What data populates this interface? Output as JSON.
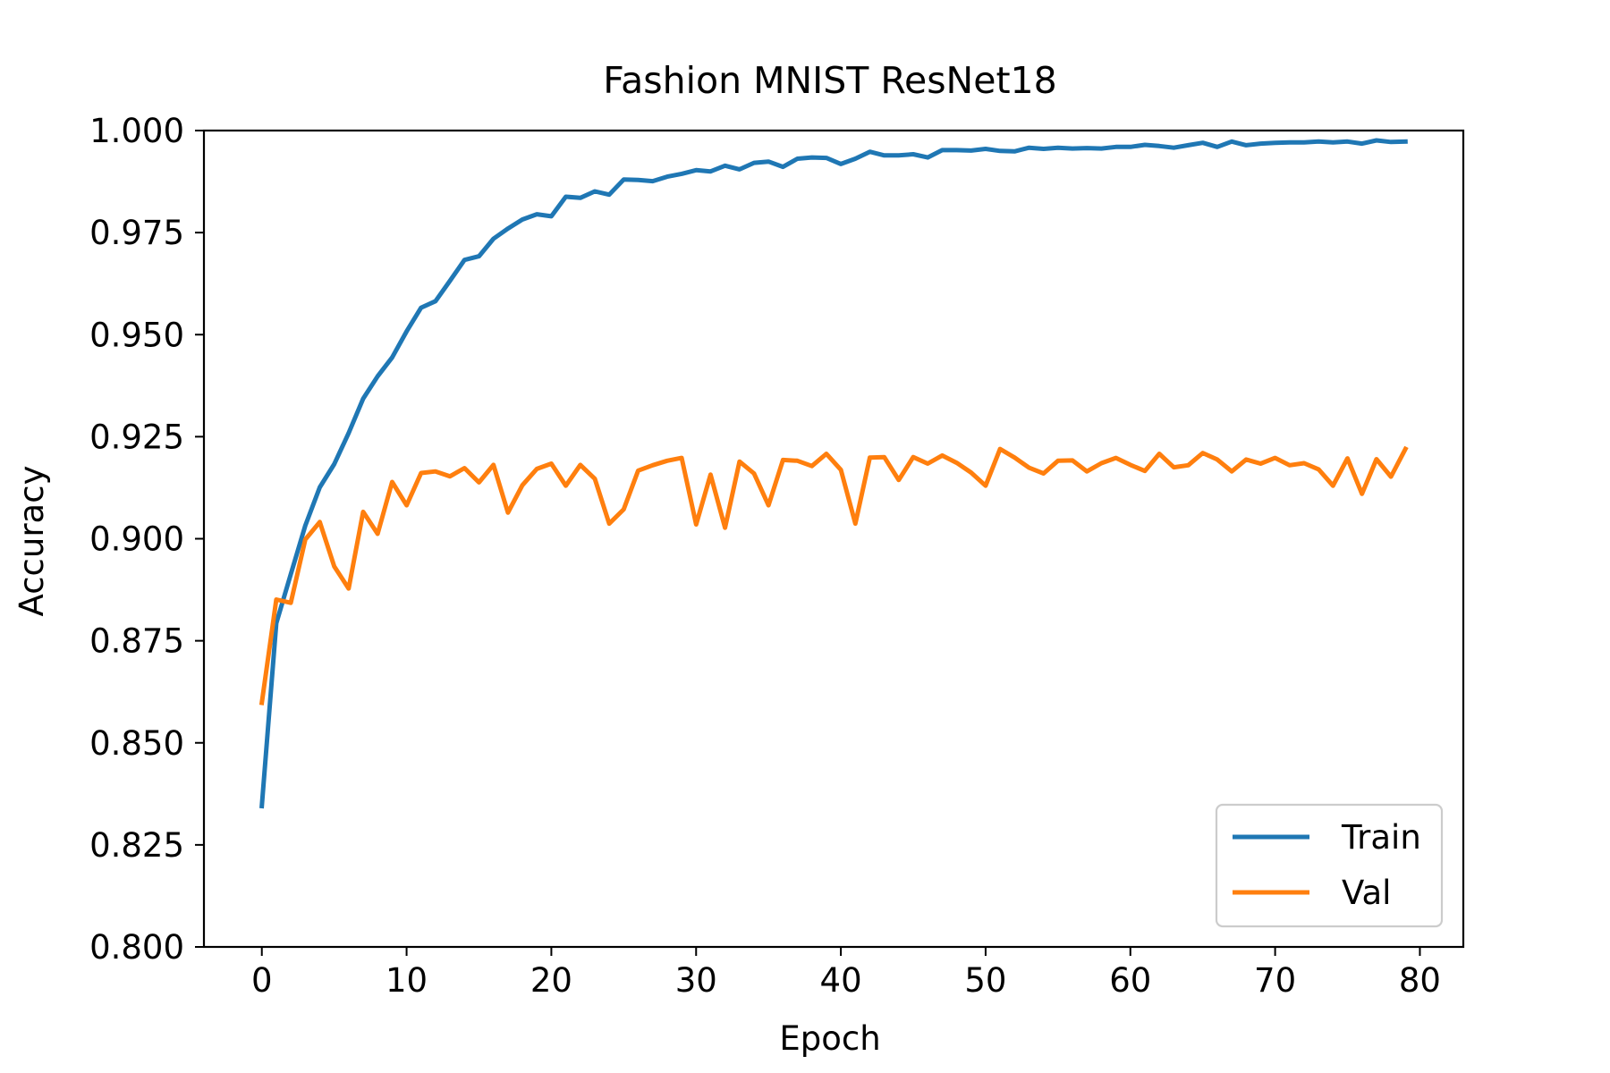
{
  "chart_data": {
    "type": "line",
    "title": "Fashion MNIST ResNet18",
    "xlabel": "Epoch",
    "ylabel": "Accuracy",
    "xlim": [
      -4,
      83
    ],
    "ylim": [
      0.8,
      1.0
    ],
    "xticks": [
      0,
      10,
      20,
      30,
      40,
      50,
      60,
      70,
      80
    ],
    "xtick_labels": [
      "0",
      "10",
      "20",
      "30",
      "40",
      "50",
      "60",
      "70",
      "80"
    ],
    "yticks": [
      0.8,
      0.825,
      0.85,
      0.875,
      0.9,
      0.925,
      0.95,
      0.975,
      1.0
    ],
    "ytick_labels": [
      "0.800",
      "0.825",
      "0.850",
      "0.875",
      "0.900",
      "0.925",
      "0.950",
      "0.975",
      "1.000"
    ],
    "grid": false,
    "legend_position": "lower-right",
    "x": [
      0,
      1,
      2,
      3,
      4,
      5,
      6,
      7,
      8,
      9,
      10,
      11,
      12,
      13,
      14,
      15,
      16,
      17,
      18,
      19,
      20,
      21,
      22,
      23,
      24,
      25,
      26,
      27,
      28,
      29,
      30,
      31,
      32,
      33,
      34,
      35,
      36,
      37,
      38,
      39,
      40,
      41,
      42,
      43,
      44,
      45,
      46,
      47,
      48,
      49,
      50,
      51,
      52,
      53,
      54,
      55,
      56,
      57,
      58,
      59,
      60,
      61,
      62,
      63,
      64,
      65,
      66,
      67,
      68,
      69,
      70,
      71,
      72,
      73,
      74,
      75,
      76,
      77,
      78,
      79
    ],
    "series": [
      {
        "name": "Train",
        "color": "#1f77b4",
        "values": [
          0.8345,
          0.8793,
          0.8913,
          0.9032,
          0.9126,
          0.9183,
          0.9259,
          0.9343,
          0.9398,
          0.9444,
          0.9508,
          0.9566,
          0.9582,
          0.9632,
          0.9683,
          0.9692,
          0.9735,
          0.976,
          0.9782,
          0.9795,
          0.979,
          0.9838,
          0.9835,
          0.9851,
          0.9843,
          0.988,
          0.9879,
          0.9876,
          0.9887,
          0.9894,
          0.9903,
          0.99,
          0.9914,
          0.9905,
          0.9921,
          0.9924,
          0.9911,
          0.9931,
          0.9934,
          0.9933,
          0.9918,
          0.9931,
          0.9948,
          0.9939,
          0.9939,
          0.9942,
          0.9934,
          0.9952,
          0.9952,
          0.9951,
          0.9955,
          0.995,
          0.9949,
          0.9958,
          0.9955,
          0.9958,
          0.9956,
          0.9957,
          0.9956,
          0.996,
          0.996,
          0.9965,
          0.9962,
          0.9958,
          0.9964,
          0.997,
          0.996,
          0.9973,
          0.9964,
          0.9968,
          0.997,
          0.9971,
          0.9971,
          0.9973,
          0.9971,
          0.9973,
          0.9968,
          0.9976,
          0.9972,
          0.9973
        ]
      },
      {
        "name": "Val",
        "color": "#ff7f0e",
        "values": [
          0.8598,
          0.8851,
          0.8843,
          0.8998,
          0.9041,
          0.8932,
          0.8878,
          0.9066,
          0.9012,
          0.9139,
          0.9082,
          0.9161,
          0.9165,
          0.9153,
          0.9173,
          0.9138,
          0.9181,
          0.9064,
          0.9131,
          0.9171,
          0.9184,
          0.913,
          0.9181,
          0.9147,
          0.9037,
          0.9072,
          0.9167,
          0.918,
          0.9191,
          0.9198,
          0.9035,
          0.9157,
          0.9027,
          0.9189,
          0.916,
          0.9082,
          0.9193,
          0.9191,
          0.9178,
          0.9208,
          0.9169,
          0.9037,
          0.9199,
          0.92,
          0.9144,
          0.92,
          0.9184,
          0.9204,
          0.9186,
          0.9162,
          0.913,
          0.922,
          0.9199,
          0.9174,
          0.916,
          0.9191,
          0.9192,
          0.9165,
          0.9185,
          0.9198,
          0.9181,
          0.9166,
          0.9208,
          0.9175,
          0.918,
          0.921,
          0.9194,
          0.9165,
          0.9194,
          0.9184,
          0.9198,
          0.918,
          0.9185,
          0.917,
          0.913,
          0.9197,
          0.911,
          0.9195,
          0.9152,
          0.922
        ]
      }
    ]
  }
}
